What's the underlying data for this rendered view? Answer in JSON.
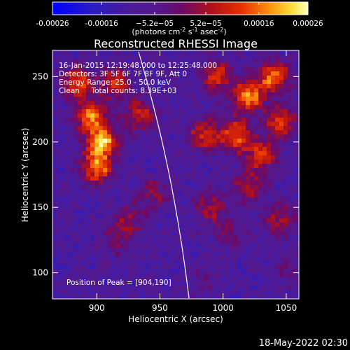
{
  "chart_data": {
    "type": "heatmap",
    "title": "Reconstructed RHESSI Image",
    "xlabel": "Heliocentric X (arcsec)",
    "ylabel": "Heliocentric Y (arcsec)",
    "xlim": [
      865,
      1060
    ],
    "ylim": [
      80,
      270
    ],
    "x_ticks": [
      900,
      950,
      1000,
      1050
    ],
    "y_ticks": [
      100,
      150,
      200,
      250
    ],
    "x_tick_labels": [
      "900",
      "950",
      "1000",
      "1050"
    ],
    "y_tick_labels": [
      "100",
      "150",
      "200",
      "250"
    ],
    "colorbar": {
      "range": [
        -0.00026,
        0.00026
      ],
      "ticks": [
        -0.00026,
        -0.00016,
        -5.2e-05,
        5.2e-05,
        0.00016,
        0.00026
      ],
      "tick_labels": [
        "-0.00026",
        "-0.00016",
        "−5.2e−05",
        "5.2e−05",
        "0.00016",
        "0.00026"
      ],
      "unit_label": "(photons cm",
      "unit_exp1": "-2",
      "unit_mid": " s",
      "unit_exp2": "-1",
      "unit_end": " asec",
      "unit_exp3": "-2",
      "unit_close": ")"
    },
    "annotations": [
      "16-Jan-2015 12:19:48.000 to 12:25:48.000",
      "Detectors: 3F 5F 6F 7F 8F 9F, Att 0",
      "Energy Range: 25.0 - 50.0 keV",
      "Clean     Total counts: 8.39E+03"
    ],
    "peak_label": "Position of Peak = [904,190]",
    "peak": [
      904,
      190
    ],
    "sources": [
      {
        "x": 904,
        "y": 200,
        "value": 1.0
      },
      {
        "x": 900,
        "y": 180,
        "value": 0.8
      },
      {
        "x": 895,
        "y": 220,
        "value": 0.75
      },
      {
        "x": 885,
        "y": 245,
        "value": 0.7
      },
      {
        "x": 915,
        "y": 245,
        "value": 0.6
      },
      {
        "x": 935,
        "y": 220,
        "value": 0.55
      },
      {
        "x": 1020,
        "y": 235,
        "value": 0.85
      },
      {
        "x": 1040,
        "y": 250,
        "value": 0.8
      },
      {
        "x": 1010,
        "y": 205,
        "value": 0.75
      },
      {
        "x": 1030,
        "y": 190,
        "value": 0.7
      },
      {
        "x": 995,
        "y": 250,
        "value": 0.65
      },
      {
        "x": 985,
        "y": 205,
        "value": 0.6
      },
      {
        "x": 1045,
        "y": 215,
        "value": 0.65
      },
      {
        "x": 1020,
        "y": 165,
        "value": 0.5
      },
      {
        "x": 990,
        "y": 150,
        "value": 0.45
      },
      {
        "x": 1045,
        "y": 140,
        "value": 0.45
      },
      {
        "x": 1005,
        "y": 130,
        "value": 0.3
      },
      {
        "x": 925,
        "y": 140,
        "value": 0.4
      },
      {
        "x": 945,
        "y": 160,
        "value": 0.35
      },
      {
        "x": 915,
        "y": 125,
        "value": 0.25
      },
      {
        "x": 1050,
        "y": 100,
        "value": 0.2
      },
      {
        "x": 985,
        "y": 95,
        "value": 0.15
      }
    ]
  },
  "timestamp": "18-May-2022 02:30"
}
